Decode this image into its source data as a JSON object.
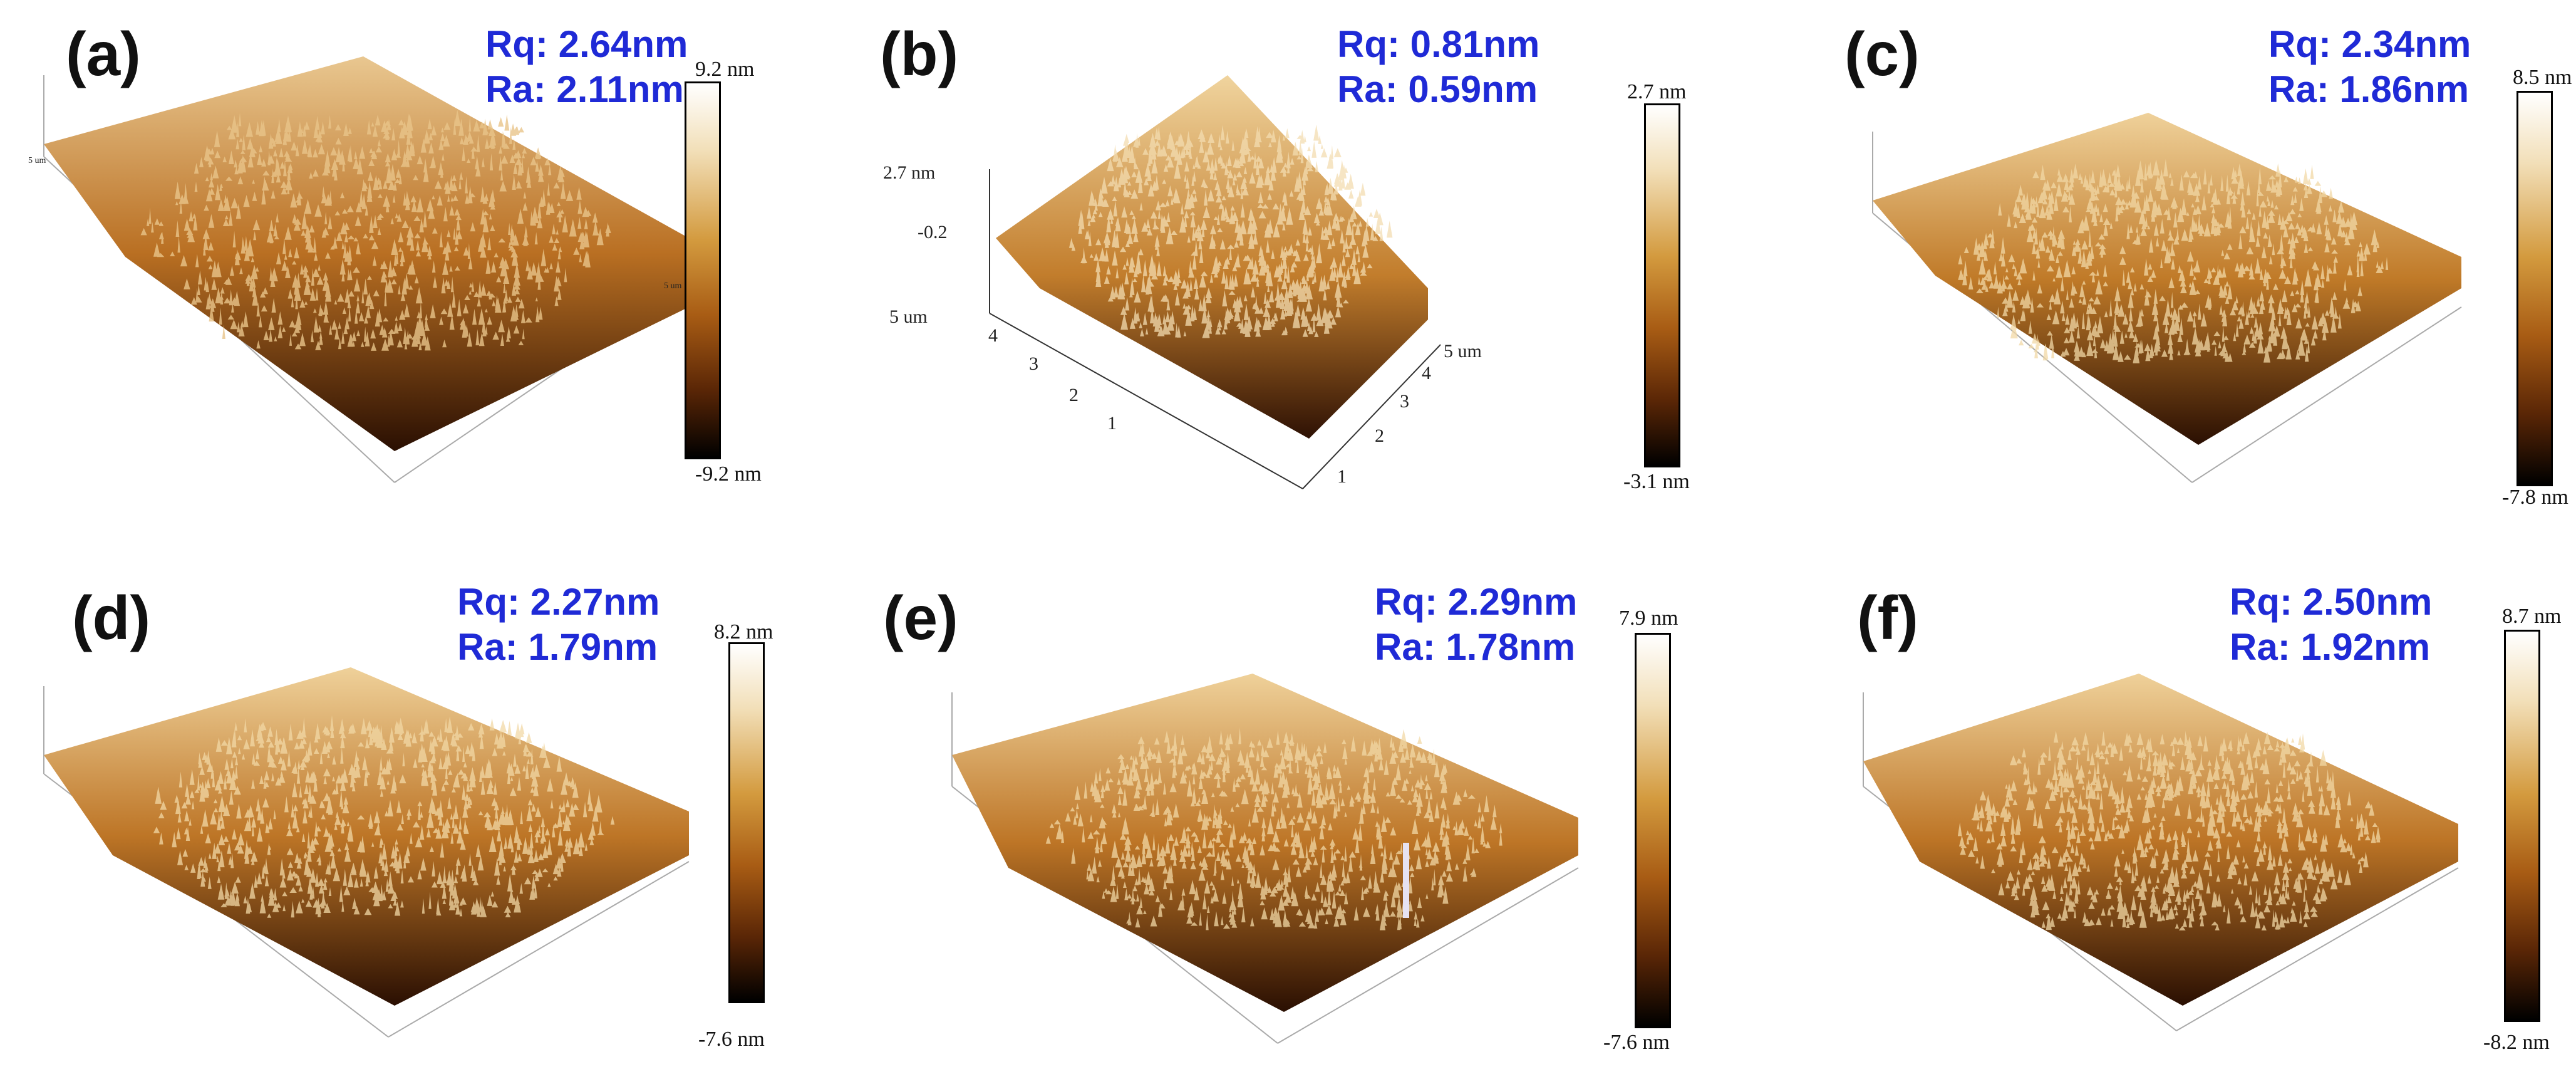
{
  "panels": [
    {
      "id": "a",
      "label": "(a)",
      "rq": "Rq: 2.64nm",
      "ra": "Ra: 2.11nm",
      "cb_max": "9.2 nm",
      "cb_min": "-9.2 nm"
    },
    {
      "id": "b",
      "label": "(b)",
      "rq": "Rq: 0.81nm",
      "ra": "Ra: 0.59nm",
      "cb_max": "2.7 nm",
      "cb_min": "-3.1 nm",
      "axis": {
        "z_top": "2.7 nm",
        "z_mid": "-0.2",
        "y_corner": "5 um",
        "x_corner": "5 um",
        "y_ticks": [
          "1",
          "2",
          "3",
          "4"
        ],
        "x_ticks": [
          "1",
          "2",
          "3",
          "4"
        ]
      }
    },
    {
      "id": "c",
      "label": "(c)",
      "rq": "Rq: 2.34nm",
      "ra": "Ra: 1.86nm",
      "cb_max": "8.5 nm",
      "cb_min": "-7.8 nm"
    },
    {
      "id": "d",
      "label": "(d)",
      "rq": "Rq: 2.27nm",
      "ra": "Ra: 1.79nm",
      "cb_max": "8.2 nm",
      "cb_min": "-7.6 nm"
    },
    {
      "id": "e",
      "label": "(e)",
      "rq": "Rq: 2.29nm",
      "ra": "Ra: 1.78nm",
      "cb_max": "7.9 nm",
      "cb_min": "-7.6 nm"
    },
    {
      "id": "f",
      "label": "(f)",
      "rq": "Rq: 2.50nm",
      "ra": "Ra: 1.92nm",
      "cb_max": "8.7 nm",
      "cb_min": "-8.2 nm"
    }
  ],
  "colors": {
    "metric_text": "#1f2ad6",
    "surface_light": "#f2d9a8",
    "surface_mid": "#c07a28",
    "surface_dark": "#3a1604"
  }
}
